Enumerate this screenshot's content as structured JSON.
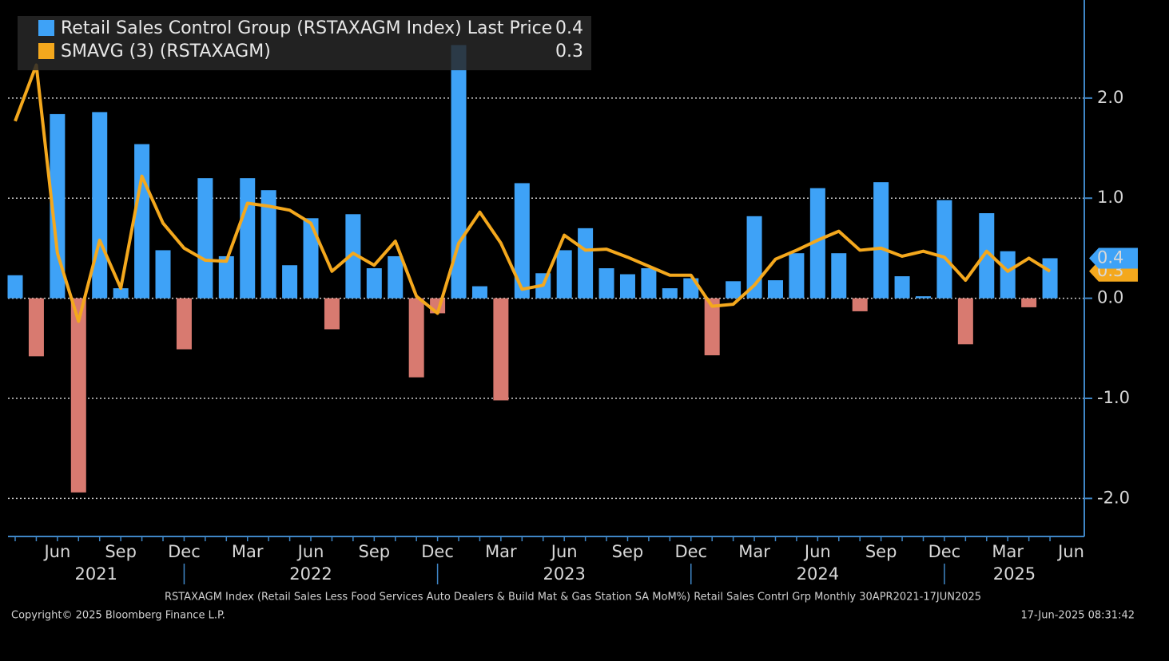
{
  "chart_data": {
    "type": "bar",
    "categories": [
      null,
      null,
      "Jun",
      null,
      null,
      "Sep",
      null,
      null,
      "Dec",
      null,
      null,
      "Mar",
      null,
      null,
      "Jun",
      null,
      null,
      "Sep",
      null,
      null,
      "Dec",
      null,
      null,
      "Mar",
      null,
      null,
      "Jun",
      null,
      null,
      "Sep",
      null,
      null,
      "Dec",
      null,
      null,
      "Mar",
      null,
      null,
      "Jun",
      null,
      null,
      "Sep",
      null,
      null,
      "Dec",
      null,
      null,
      "Mar",
      null,
      null
    ],
    "trailing_category": "Jun",
    "years": [
      "2021",
      "2022",
      "2023",
      "2024",
      "2025"
    ],
    "series": [
      {
        "name": "Retail Sales Control Group (RSTAXAGM Index) Last Price",
        "type": "bar",
        "color": "#3ea2f7",
        "negative_color": "#d87a70",
        "last_label": "0.4",
        "values": [
          0.23,
          -0.58,
          1.84,
          -1.94,
          1.86,
          0.1,
          1.54,
          0.48,
          -0.51,
          1.2,
          0.42,
          1.2,
          1.08,
          0.33,
          0.8,
          -0.31,
          0.84,
          0.3,
          0.42,
          -0.79,
          -0.15,
          2.53,
          0.12,
          -1.02,
          1.15,
          0.25,
          0.48,
          0.7,
          0.3,
          0.24,
          0.3,
          0.1,
          0.2,
          -0.57,
          0.17,
          0.82,
          0.18,
          0.45,
          1.1,
          0.45,
          -0.13,
          1.16,
          0.22,
          0.02,
          0.98,
          -0.46,
          0.85,
          0.47,
          -0.09,
          0.4
        ]
      },
      {
        "name": "SMAVG (3) (RSTAXAGM)",
        "type": "line",
        "color": "#f4a81d",
        "last_label": "0.3",
        "values": [
          1.77,
          2.33,
          0.45,
          -0.23,
          0.58,
          0.1,
          1.22,
          0.75,
          0.5,
          0.38,
          0.37,
          0.95,
          0.92,
          0.88,
          0.75,
          0.27,
          0.45,
          0.33,
          0.57,
          0.02,
          -0.15,
          0.55,
          0.86,
          0.55,
          0.09,
          0.13,
          0.63,
          0.48,
          0.49,
          0.41,
          0.32,
          0.23,
          0.23,
          -0.08,
          -0.06,
          0.13,
          0.39,
          0.48,
          0.58,
          0.67,
          0.48,
          0.5,
          0.42,
          0.47,
          0.41,
          0.18,
          0.47,
          0.27,
          0.4,
          0.27
        ]
      }
    ],
    "ylim": [
      -2.38,
      2.98
    ],
    "yticks": [
      {
        "value": -2,
        "label": "-2.0"
      },
      {
        "value": -1,
        "label": "-1.0"
      },
      {
        "value": 0,
        "label": "0.0"
      },
      {
        "value": 1,
        "label": "1.0"
      },
      {
        "value": 2,
        "label": "2.0"
      }
    ],
    "grid": true,
    "footer": "RSTAXAGM Index (Retail Sales Less Food Services Auto Dealers & Build Mat & Gas Station SA MoM%) Retail Sales Contrl Grp  Monthly 30APR2021-17JUN2025",
    "copyright": "Copyright© 2025 Bloomberg Finance L.P.",
    "timestamp": "17-Jun-2025 08:31:42"
  }
}
